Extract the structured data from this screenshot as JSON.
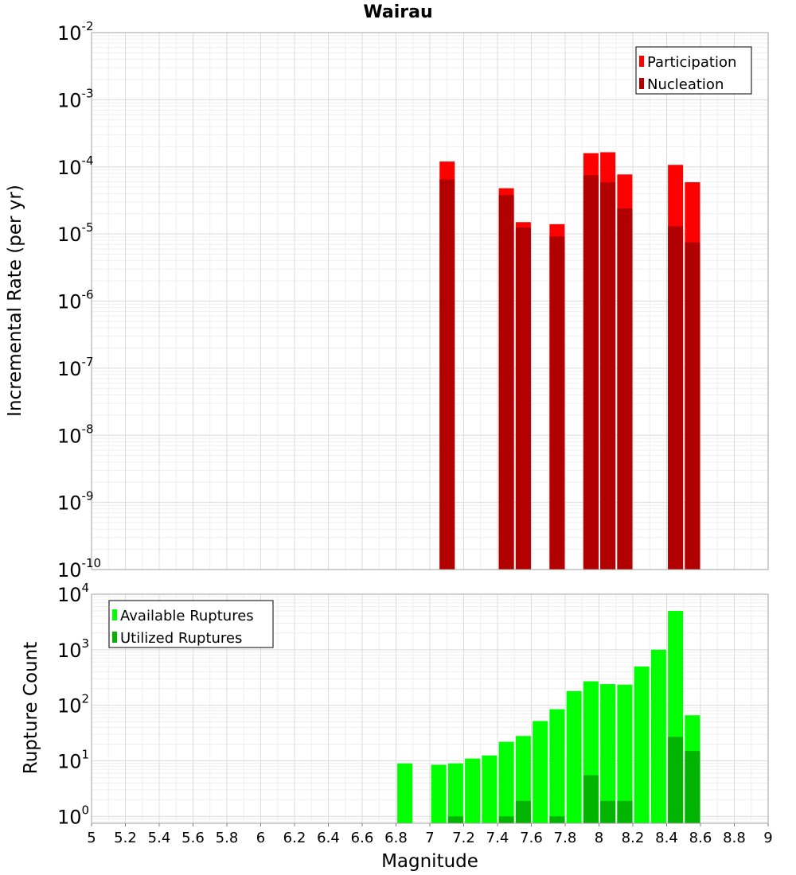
{
  "chart_data": [
    {
      "type": "bar",
      "title": "Wairau",
      "xlabel": "",
      "ylabel": "Incremental Rate (per yr)",
      "yscale": "log",
      "xlim": [
        5,
        9
      ],
      "ylim": [
        1e-10,
        0.01
      ],
      "ytick_exponents": [
        -10,
        -9,
        -8,
        -7,
        -6,
        -5,
        -4,
        -3,
        -2
      ],
      "grid": true,
      "legend_position": "top-right",
      "x": [
        7.1,
        7.45,
        7.55,
        7.75,
        7.95,
        8.05,
        8.15,
        8.45,
        8.55
      ],
      "series": [
        {
          "name": "Participation",
          "color": "#ff0000",
          "values": [
            0.00012,
            4.8e-05,
            1.5e-05,
            1.4e-05,
            0.00016,
            0.000165,
            7.7e-05,
            0.000107,
            5.9e-05
          ]
        },
        {
          "name": "Nucleation",
          "color": "#b20000",
          "values": [
            6.5e-05,
            3.8e-05,
            1.25e-05,
            9.2e-06,
            7.5e-05,
            5.9e-05,
            2.4e-05,
            1.3e-05,
            7.5e-06
          ]
        }
      ]
    },
    {
      "type": "bar",
      "title": "",
      "xlabel": "Magnitude",
      "ylabel": "Rupture Count",
      "yscale": "log",
      "xlim": [
        5,
        9
      ],
      "ylim": [
        0.75,
        10000
      ],
      "ytick_exponents": [
        0,
        1,
        2,
        3,
        4
      ],
      "xticks": [
        "5",
        "5.2",
        "5.4",
        "5.6",
        "5.8",
        "6",
        "6.2",
        "6.4",
        "6.6",
        "6.8",
        "7",
        "7.2",
        "7.4",
        "7.6",
        "7.8",
        "8",
        "8.2",
        "8.4",
        "8.6",
        "8.8",
        "9"
      ],
      "grid": true,
      "legend_position": "top-left",
      "series": [
        {
          "name": "Available Ruptures",
          "color": "#00ff00",
          "x": [
            6.85,
            7.05,
            7.15,
            7.25,
            7.35,
            7.45,
            7.55,
            7.65,
            7.75,
            7.85,
            7.95,
            8.05,
            8.15,
            8.25,
            8.35,
            8.45,
            8.55
          ],
          "values": [
            9,
            8.5,
            9,
            11,
            12.5,
            22,
            28,
            52,
            85,
            180,
            270,
            240,
            235,
            500,
            1000,
            5000,
            66
          ]
        },
        {
          "name": "Utilized Ruptures",
          "color": "#00b400",
          "x": [
            7.15,
            7.45,
            7.55,
            7.75,
            7.95,
            8.05,
            8.15,
            8.45,
            8.55
          ],
          "values": [
            1,
            1,
            1.9,
            1,
            5.5,
            1.9,
            1.9,
            27,
            15
          ]
        }
      ]
    }
  ]
}
